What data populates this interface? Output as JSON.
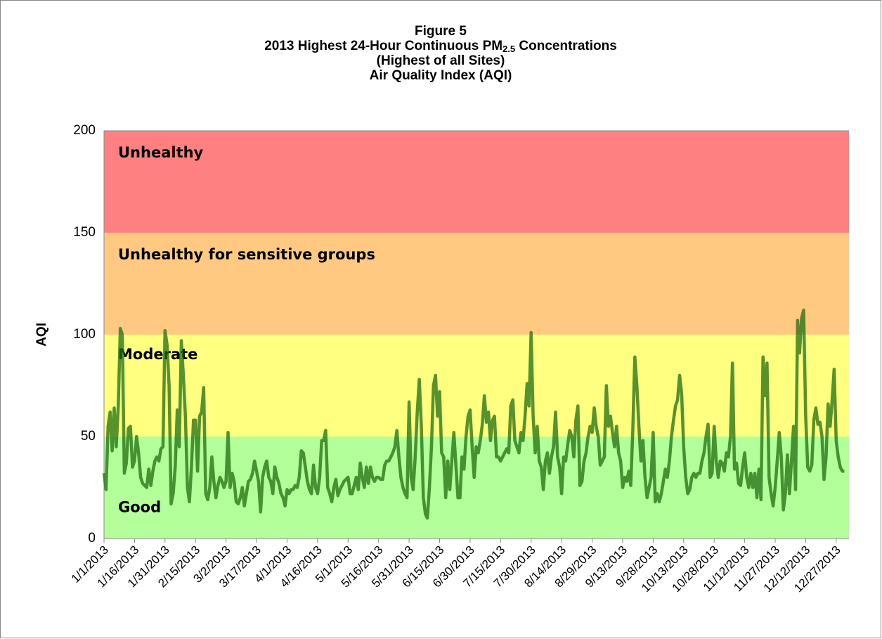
{
  "chart_data": {
    "type": "line",
    "title_lines": [
      "Figure 5",
      [
        "2013 Highest 24-Hour Continuous PM",
        "2.5",
        " Concentrations"
      ],
      "(Highest of all Sites)",
      "Air Quality Index (AQI)"
    ],
    "y_label": "AQI",
    "ylim": [
      0,
      200
    ],
    "yticks": [
      0,
      50,
      100,
      150,
      200
    ],
    "bands": [
      {
        "label": "Good",
        "from": 0,
        "to": 50,
        "color": "#b3ff99"
      },
      {
        "label": "Moderate",
        "from": 50,
        "to": 100,
        "color": "#ffff80"
      },
      {
        "label": "Unhealthy for sensitive groups",
        "from": 100,
        "to": 150,
        "color": "#ffc982"
      },
      {
        "label": "Unhealthy",
        "from": 150,
        "to": 200,
        "color": "#ff8080"
      }
    ],
    "categories": [
      "1/1/2013",
      null,
      null,
      null,
      null,
      null,
      null,
      null,
      null,
      null,
      null,
      null,
      null,
      null,
      null,
      "1/16/2013",
      null,
      null,
      null,
      null,
      null,
      null,
      null,
      null,
      null,
      null,
      null,
      null,
      null,
      null,
      "1/31/2013",
      null,
      null,
      null,
      null,
      null,
      null,
      null,
      null,
      null,
      null,
      null,
      null,
      null,
      null,
      "2/15/2013",
      null,
      null,
      null,
      null,
      null,
      null,
      null,
      null,
      null,
      null,
      null,
      null,
      null,
      null,
      "3/2/2013",
      null,
      null,
      null,
      null,
      null,
      null,
      null,
      null,
      null,
      null,
      null,
      null,
      null,
      null,
      "3/17/2013",
      null,
      null,
      null,
      null,
      null,
      null,
      null,
      null,
      null,
      null,
      null,
      null,
      null,
      null,
      "4/1/2013",
      null,
      null,
      null,
      null,
      null,
      null,
      null,
      null,
      null,
      null,
      null,
      null,
      null,
      null,
      "4/16/2013",
      null,
      null,
      null,
      null,
      null,
      null,
      null,
      null,
      null,
      null,
      null,
      null,
      null,
      null,
      "5/1/2013",
      null,
      null,
      null,
      null,
      null,
      null,
      null,
      null,
      null,
      null,
      null,
      null,
      null,
      null,
      "5/16/2013",
      null,
      null,
      null,
      null,
      null,
      null,
      null,
      null,
      null,
      null,
      null,
      null,
      null,
      null,
      "5/31/2013",
      null,
      null,
      null,
      null,
      null,
      null,
      null,
      null,
      null,
      null,
      null,
      null,
      null,
      null,
      "6/15/2013",
      null,
      null,
      null,
      null,
      null,
      null,
      null,
      null,
      null,
      null,
      null,
      null,
      null,
      null,
      "6/30/2013",
      null,
      null,
      null,
      null,
      null,
      null,
      null,
      null,
      null,
      null,
      null,
      null,
      null,
      null,
      "7/15/2013",
      null,
      null,
      null,
      null,
      null,
      null,
      null,
      null,
      null,
      null,
      null,
      null,
      null,
      null,
      "7/30/2013",
      null,
      null,
      null,
      null,
      null,
      null,
      null,
      null,
      null,
      null,
      null,
      null,
      null,
      null,
      "8/14/2013",
      null,
      null,
      null,
      null,
      null,
      null,
      null,
      null,
      null,
      null,
      null,
      null,
      null,
      null,
      "8/29/2013",
      null,
      null,
      null,
      null,
      null,
      null,
      null,
      null,
      null,
      null,
      null,
      null,
      null,
      null,
      "9/13/2013",
      null,
      null,
      null,
      null,
      null,
      null,
      null,
      null,
      null,
      null,
      null,
      null,
      null,
      null,
      "9/28/2013",
      null,
      null,
      null,
      null,
      null,
      null,
      null,
      null,
      null,
      null,
      null,
      null,
      null,
      null,
      "10/13/2013",
      null,
      null,
      null,
      null,
      null,
      null,
      null,
      null,
      null,
      null,
      null,
      null,
      null,
      null,
      "10/28/2013",
      null,
      null,
      null,
      null,
      null,
      null,
      null,
      null,
      null,
      null,
      null,
      null,
      null,
      null,
      "11/12/2013",
      null,
      null,
      null,
      null,
      null,
      null,
      null,
      null,
      null,
      null,
      null,
      null,
      null,
      null,
      "11/27/2013",
      null,
      null,
      null,
      null,
      null,
      null,
      null,
      null,
      null,
      null,
      null,
      null,
      null,
      null,
      "12/12/2013",
      null,
      null,
      null,
      null,
      null,
      null,
      null,
      null,
      null,
      null,
      null,
      null,
      null,
      null,
      "12/27/2013",
      null,
      null,
      null,
      null
    ],
    "series": [
      {
        "color": "#1f6e10",
        "values": [
          32,
          24,
          55,
          62,
          43,
          64,
          45,
          65,
          103,
          100,
          32,
          37,
          54,
          55,
          35,
          38,
          50,
          42,
          30,
          27,
          26,
          25,
          34,
          26,
          33,
          38,
          40,
          38,
          44,
          45,
          102,
          95,
          75,
          17,
          22,
          35,
          63,
          45,
          97,
          80,
          60,
          25,
          18,
          35,
          58,
          58,
          33,
          60,
          62,
          74,
          22,
          19,
          25,
          40,
          28,
          20,
          26,
          30,
          28,
          25,
          28,
          52,
          25,
          32,
          28,
          18,
          17,
          20,
          25,
          16,
          22,
          28,
          29,
          32,
          38,
          33,
          28,
          13,
          30,
          35,
          38,
          30,
          28,
          22,
          35,
          30,
          27,
          22,
          20,
          16,
          24,
          22,
          24,
          24,
          26,
          25,
          30,
          43,
          42,
          35,
          28,
          24,
          22,
          36,
          25,
          22,
          30,
          48,
          48,
          53,
          25,
          22,
          18,
          25,
          29,
          21,
          24,
          26,
          28,
          29,
          30,
          22,
          22,
          26,
          30,
          24,
          37,
          30,
          25,
          35,
          27,
          35,
          30,
          28,
          30,
          30,
          29,
          29,
          36,
          38,
          38,
          40,
          42,
          45,
          53,
          40,
          30,
          25,
          22,
          20,
          67,
          30,
          24,
          40,
          62,
          78,
          55,
          20,
          12,
          10,
          25,
          45,
          75,
          80,
          60,
          72,
          42,
          40,
          20,
          38,
          24,
          38,
          52,
          36,
          20,
          20,
          40,
          34,
          50,
          60,
          63,
          45,
          30,
          45,
          42,
          48,
          56,
          70,
          57,
          62,
          48,
          58,
          60,
          40,
          40,
          38,
          40,
          42,
          44,
          42,
          65,
          68,
          48,
          45,
          42,
          52,
          48,
          60,
          76,
          65,
          101,
          60,
          42,
          55,
          38,
          35,
          24,
          38,
          42,
          32,
          40,
          45,
          62,
          40,
          35,
          22,
          40,
          38,
          46,
          53,
          50,
          40,
          58,
          65,
          26,
          28,
          38,
          42,
          50,
          55,
          52,
          64,
          55,
          50,
          36,
          38,
          40,
          75,
          55,
          60,
          52,
          45,
          55,
          42,
          38,
          25,
          30,
          28,
          33,
          26,
          53,
          89,
          75,
          55,
          38,
          48,
          30,
          20,
          25,
          30,
          52,
          18,
          22,
          18,
          22,
          28,
          34,
          30,
          38,
          50,
          58,
          65,
          68,
          80,
          71,
          45,
          30,
          22,
          24,
          30,
          32,
          30,
          32,
          32,
          38,
          42,
          50,
          56,
          30,
          32,
          55,
          38,
          30,
          38,
          37,
          33,
          42,
          40,
          50,
          86,
          34,
          37,
          27,
          26,
          35,
          42,
          30,
          25,
          32,
          25,
          32,
          20,
          34,
          19,
          89,
          70,
          86,
          30,
          22,
          16,
          25,
          38,
          52,
          40,
          14,
          22,
          41,
          22,
          38,
          55,
          24,
          107,
          91,
          108,
          112,
          60,
          35,
          33,
          36,
          58,
          64,
          56,
          57,
          50,
          29,
          40,
          66,
          55,
          68,
          83,
          48,
          40,
          35,
          33,
          33
        ]
      }
    ]
  }
}
